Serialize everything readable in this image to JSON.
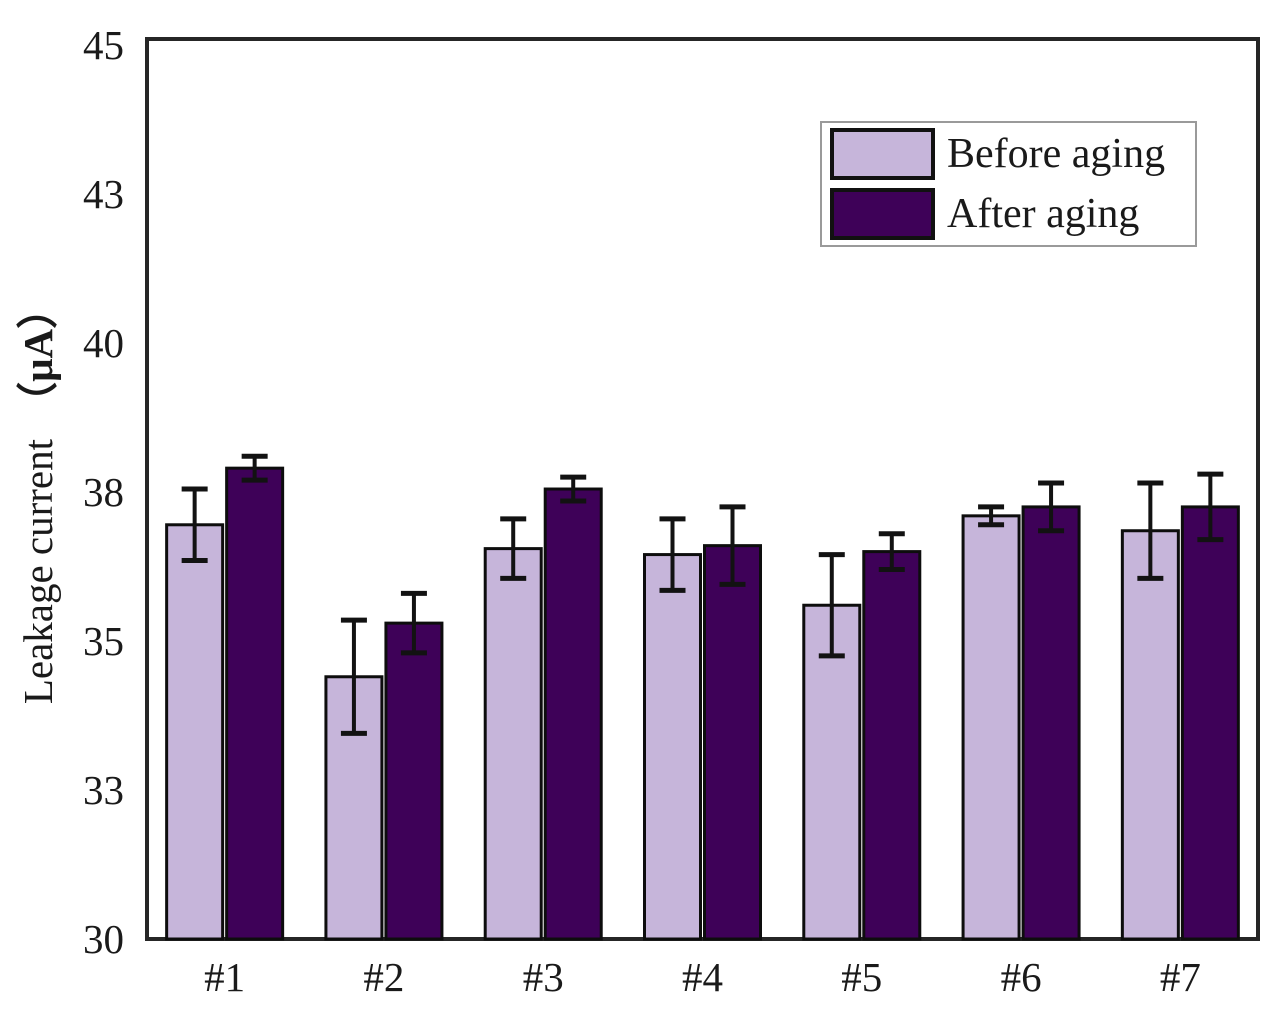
{
  "chart_data": {
    "type": "bar",
    "title": "",
    "categories": [
      "#1",
      "#2",
      "#3",
      "#4",
      "#5",
      "#6",
      "#7"
    ],
    "series": [
      {
        "name": "Before aging",
        "color": "#c6b5da",
        "values": [
          36.95,
          34.4,
          36.55,
          36.45,
          35.6,
          37.1,
          36.85
        ],
        "errors": [
          0.6,
          0.95,
          0.5,
          0.6,
          0.85,
          0.15,
          0.8
        ]
      },
      {
        "name": "After aging",
        "color": "#3e0158",
        "values": [
          37.9,
          35.3,
          37.55,
          36.6,
          36.5,
          37.25,
          37.25
        ],
        "errors": [
          0.2,
          0.5,
          0.2,
          0.65,
          0.3,
          0.4,
          0.55
        ]
      }
    ],
    "ylabel_main": "Leakage current",
    "ylabel_unit": "（μA）",
    "yticks": [
      {
        "value": 30,
        "label": "30"
      },
      {
        "value": 32.5,
        "label": "33"
      },
      {
        "value": 35,
        "label": "35"
      },
      {
        "value": 37.5,
        "label": "38"
      },
      {
        "value": 40,
        "label": "40"
      },
      {
        "value": 42.5,
        "label": "43"
      },
      {
        "value": 45,
        "label": "45"
      }
    ],
    "ylim": [
      30,
      45.15
    ],
    "xlabel": "",
    "grid": false,
    "legend_position": "top-right",
    "bar_border_color": "#0d0d0d",
    "errorbar_color": "#121212",
    "frame_color": "#262626"
  }
}
